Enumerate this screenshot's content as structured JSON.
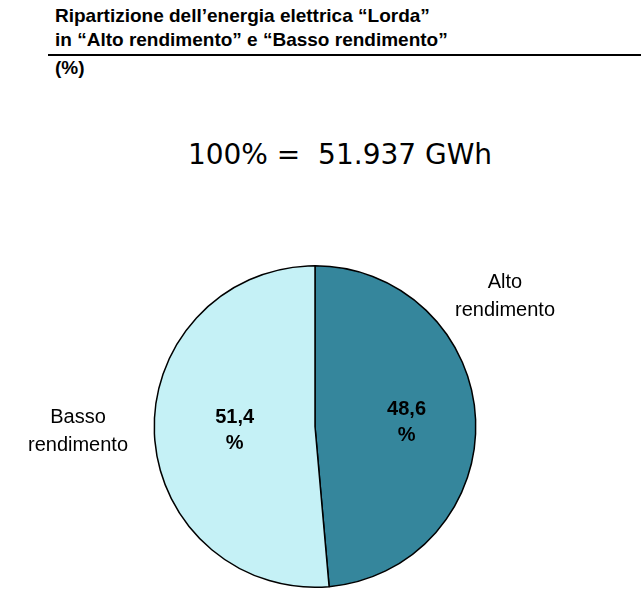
{
  "chart_data": {
    "type": "pie",
    "title": "Ripartizione dell’energia elettrica “Lorda”\nin “Alto rendimento” e “Basso rendimento”\n(%)",
    "subtitle": "100% =  51.937 GWh",
    "categories": [
      "Alto rendimento",
      "Basso rendimento"
    ],
    "values": [
      48.6,
      51.4
    ],
    "value_labels": [
      "48,6\n%",
      "51,4\n%"
    ],
    "colors": [
      "#35869c",
      "#c5f1f6"
    ],
    "data_labels": true
  }
}
